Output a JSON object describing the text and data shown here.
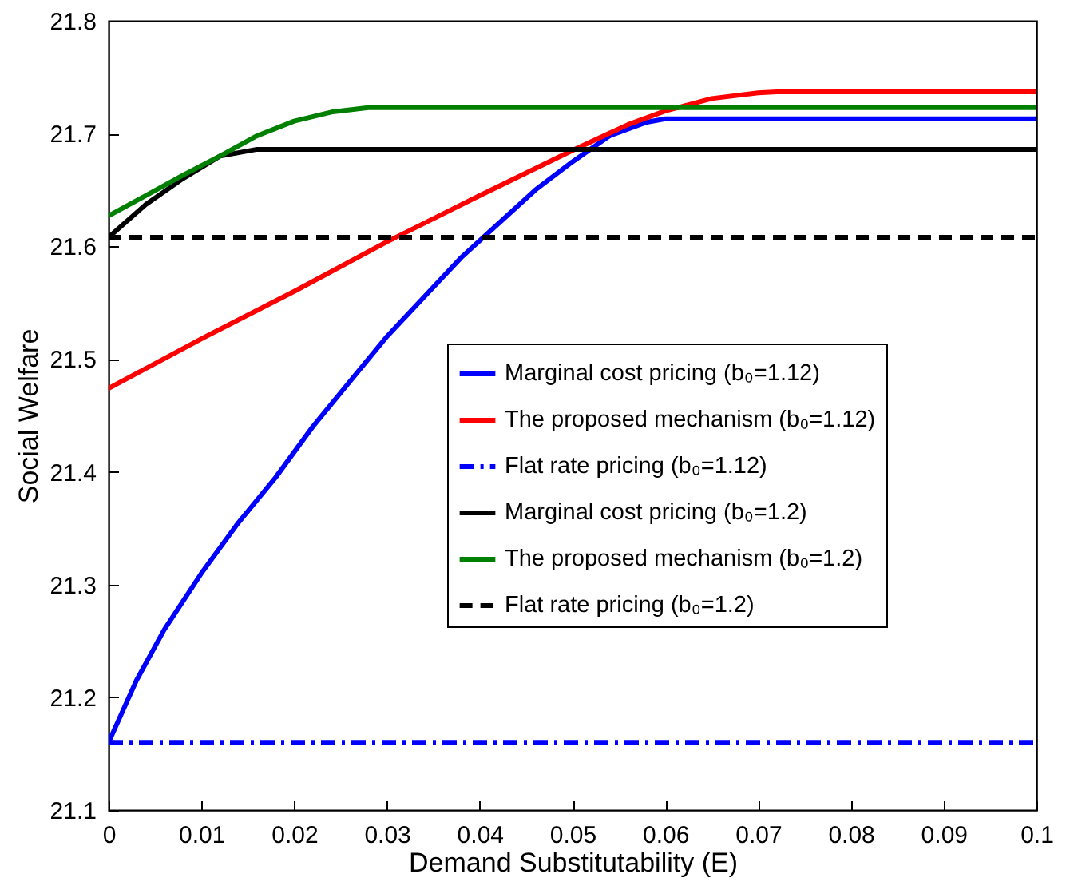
{
  "chart_data": {
    "type": "line",
    "xlabel": "Demand Substitutability (E)",
    "ylabel": "Social Welfare",
    "xlim": [
      0,
      0.1
    ],
    "xticks": [
      0,
      0.01,
      0.02,
      0.03,
      0.04,
      0.05,
      0.06,
      0.07,
      0.08,
      0.09,
      0.1
    ],
    "ylim": [
      21.1,
      21.8
    ],
    "yticks": [
      21.1,
      21.2,
      21.3,
      21.4,
      21.5,
      21.6,
      21.7,
      21.8
    ],
    "grid": false,
    "legend": "right",
    "marker": "none",
    "series": [
      {
        "name": "Marginal cost pricing (b₀=1.12)",
        "color": "#0000ff",
        "line_style": "solid",
        "x": [
          0,
          0.003,
          0.006,
          0.01,
          0.014,
          0.018,
          0.022,
          0.026,
          0.03,
          0.034,
          0.038,
          0.042,
          0.046,
          0.05,
          0.054,
          0.058,
          0.06,
          0.07,
          0.08,
          0.09,
          0.1
        ],
        "values": [
          21.16,
          21.215,
          21.26,
          21.31,
          21.355,
          21.395,
          21.44,
          21.48,
          21.52,
          21.555,
          21.59,
          21.62,
          21.65,
          21.675,
          21.698,
          21.71,
          21.713,
          21.713,
          21.713,
          21.713,
          21.713
        ]
      },
      {
        "name": "The proposed mechanism (b₀=1.12)",
        "color": "#ff0000",
        "line_style": "solid",
        "x": [
          0,
          0.01,
          0.02,
          0.03,
          0.04,
          0.05,
          0.056,
          0.06,
          0.065,
          0.07,
          0.072,
          0.08,
          0.09,
          0.1
        ],
        "values": [
          21.474,
          21.518,
          21.56,
          21.604,
          21.645,
          21.685,
          21.708,
          21.72,
          21.731,
          21.736,
          21.737,
          21.737,
          21.737,
          21.737
        ]
      },
      {
        "name": "Flat rate pricing (b₀=1.12)",
        "color": "#0000ff",
        "line_style": "dashdot",
        "x": [
          0,
          0.1
        ],
        "values": [
          21.16,
          21.16
        ]
      },
      {
        "name": "Marginal cost pricing (b₀=1.2)",
        "color": "#000000",
        "line_style": "solid",
        "x": [
          0,
          0.004,
          0.008,
          0.012,
          0.016,
          0.03,
          0.05,
          0.07,
          0.1
        ],
        "values": [
          21.608,
          21.637,
          21.66,
          21.68,
          21.686,
          21.686,
          21.686,
          21.686,
          21.686
        ]
      },
      {
        "name": "The proposed mechanism (b₀=1.2)",
        "color": "#008000",
        "line_style": "solid",
        "x": [
          0,
          0.004,
          0.008,
          0.012,
          0.016,
          0.02,
          0.024,
          0.028,
          0.04,
          0.06,
          0.08,
          0.1
        ],
        "values": [
          21.627,
          21.645,
          21.663,
          21.68,
          21.698,
          21.711,
          21.719,
          21.723,
          21.723,
          21.723,
          21.723,
          21.723
        ]
      },
      {
        "name": "Flat rate pricing (b₀=1.2)",
        "color": "#000000",
        "line_style": "dashed",
        "x": [
          0,
          0.1
        ],
        "values": [
          21.608,
          21.608
        ]
      }
    ]
  }
}
